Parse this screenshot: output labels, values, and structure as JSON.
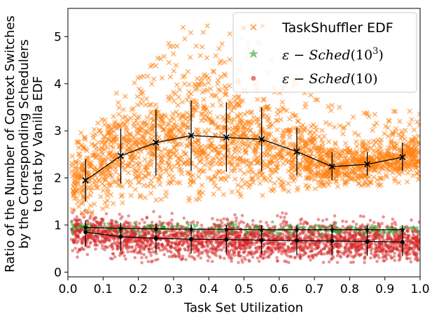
{
  "chart_data": {
    "type": "scatter",
    "xlabel": "Task Set Utilization",
    "ylabel_lines": [
      "Ratio of the Number of Context Switches",
      "by the Corresponding Schedulers",
      "to that by Vanilla EDF"
    ],
    "xlim": [
      0.0,
      1.0
    ],
    "ylim": [
      -0.1,
      5.6
    ],
    "x_ticks": [
      "0.0",
      "0.1",
      "0.2",
      "0.3",
      "0.4",
      "0.5",
      "0.6",
      "0.7",
      "0.8",
      "0.9",
      "1.0"
    ],
    "y_ticks": [
      "0",
      "1",
      "2",
      "3",
      "4",
      "5"
    ],
    "grid": false,
    "legend_position": "top-right",
    "legend": [
      {
        "label": "TaskShuffler EDF",
        "color": "#ff7f0e",
        "marker": "x"
      },
      {
        "label": "ε − Sched(10³)",
        "color": "#2ca02c",
        "marker": "star"
      },
      {
        "label": "ε − Sched(10)",
        "color": "#d62728",
        "marker": "circle"
      }
    ],
    "series": [
      {
        "name": "TaskShuffler EDF",
        "color": "#ff7f0e",
        "mean_color": "#000000",
        "x": [
          0.05,
          0.15,
          0.25,
          0.35,
          0.45,
          0.55,
          0.65,
          0.75,
          0.85,
          0.95
        ],
        "mean": [
          1.95,
          2.47,
          2.75,
          2.9,
          2.86,
          2.82,
          2.56,
          2.24,
          2.29,
          2.44
        ],
        "std_low": [
          1.5,
          1.88,
          2.05,
          2.15,
          2.13,
          2.15,
          2.05,
          1.95,
          2.05,
          2.15
        ],
        "std_high": [
          2.4,
          3.05,
          3.45,
          3.65,
          3.6,
          3.5,
          3.07,
          2.55,
          2.55,
          2.75
        ],
        "scatter_range_low": [
          1.2,
          1.4,
          1.5,
          1.5,
          1.5,
          1.6,
          1.7,
          1.8,
          1.8,
          1.9
        ],
        "scatter_range_high": [
          3.0,
          4.0,
          4.6,
          5.4,
          5.3,
          5.0,
          4.3,
          3.6,
          3.4,
          3.6
        ]
      },
      {
        "name": "ε − Sched(10³)",
        "color": "#2ca02c",
        "mean_color": "#000000",
        "x": [
          0.05,
          0.15,
          0.25,
          0.35,
          0.45,
          0.55,
          0.65,
          0.75,
          0.85,
          0.95
        ],
        "mean": [
          0.95,
          0.93,
          0.92,
          0.91,
          0.91,
          0.9,
          0.9,
          0.9,
          0.9,
          0.9
        ],
        "std_low": [
          0.87,
          0.84,
          0.82,
          0.81,
          0.81,
          0.8,
          0.8,
          0.8,
          0.8,
          0.8
        ],
        "std_high": [
          1.02,
          1.03,
          1.02,
          1.01,
          1.0,
          1.0,
          1.0,
          1.0,
          1.0,
          1.0
        ]
      },
      {
        "name": "ε − Sched(10)",
        "color": "#d62728",
        "mean_color": "#000000",
        "x": [
          0.05,
          0.15,
          0.25,
          0.35,
          0.45,
          0.55,
          0.65,
          0.75,
          0.85,
          0.95
        ],
        "mean": [
          0.85,
          0.75,
          0.72,
          0.7,
          0.69,
          0.68,
          0.67,
          0.66,
          0.65,
          0.64
        ],
        "std_low": [
          0.55,
          0.45,
          0.42,
          0.4,
          0.39,
          0.38,
          0.37,
          0.36,
          0.35,
          0.34
        ],
        "std_high": [
          1.1,
          1.05,
          1.02,
          1.0,
          0.99,
          0.98,
          0.97,
          0.96,
          0.95,
          0.94
        ],
        "scatter_range_low": [
          0.3,
          0.2,
          0.2,
          0.2,
          0.2,
          0.2,
          0.2,
          0.2,
          0.2,
          0.2
        ],
        "scatter_range_high": [
          1.4,
          1.4,
          1.35,
          1.3,
          1.3,
          1.3,
          1.25,
          1.25,
          1.2,
          1.2
        ]
      }
    ]
  }
}
